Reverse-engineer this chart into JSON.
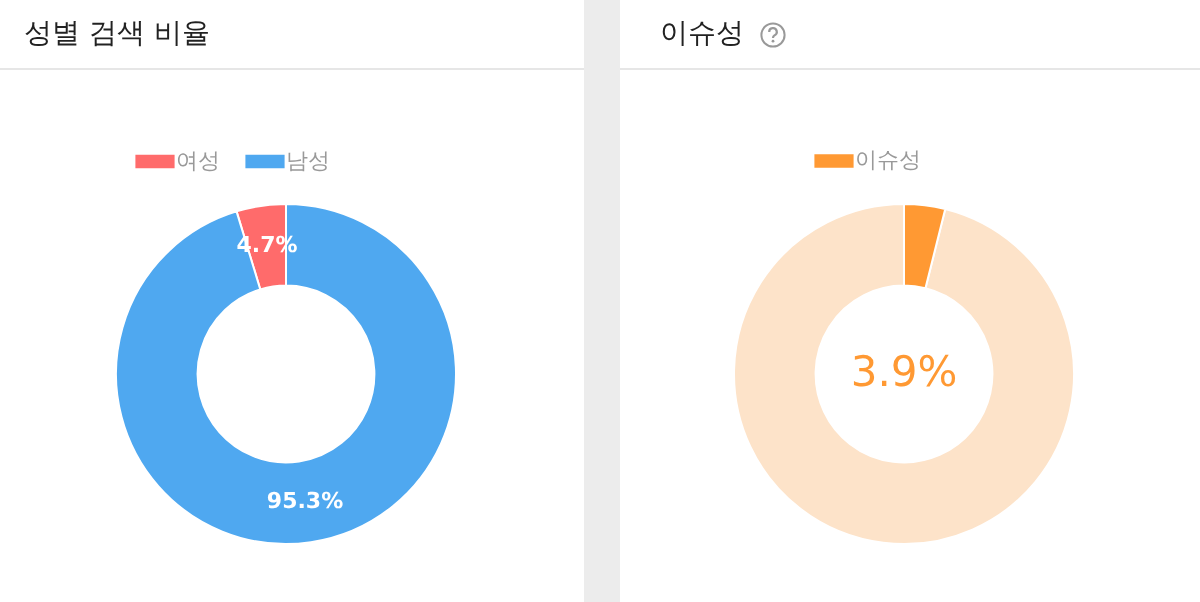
{
  "chart_data": [
    {
      "type": "donut",
      "title": "성별 검색 비율",
      "categories": [
        "여성",
        "남성"
      ],
      "values": [
        4.7,
        95.3
      ],
      "colors": [
        "#ff6b6b",
        "#4fa8f0"
      ],
      "value_labels": [
        "4.7%",
        "95.3%"
      ],
      "legend": "top"
    },
    {
      "type": "donut",
      "title": "이슈성",
      "categories": [
        null,
        "이슈성"
      ],
      "values": [
        96.1,
        3.9
      ],
      "colors": [
        "#fde3c9",
        "#ff9933"
      ],
      "value_labels": [
        null,
        "3.9%"
      ],
      "legend": "top"
    }
  ]
}
